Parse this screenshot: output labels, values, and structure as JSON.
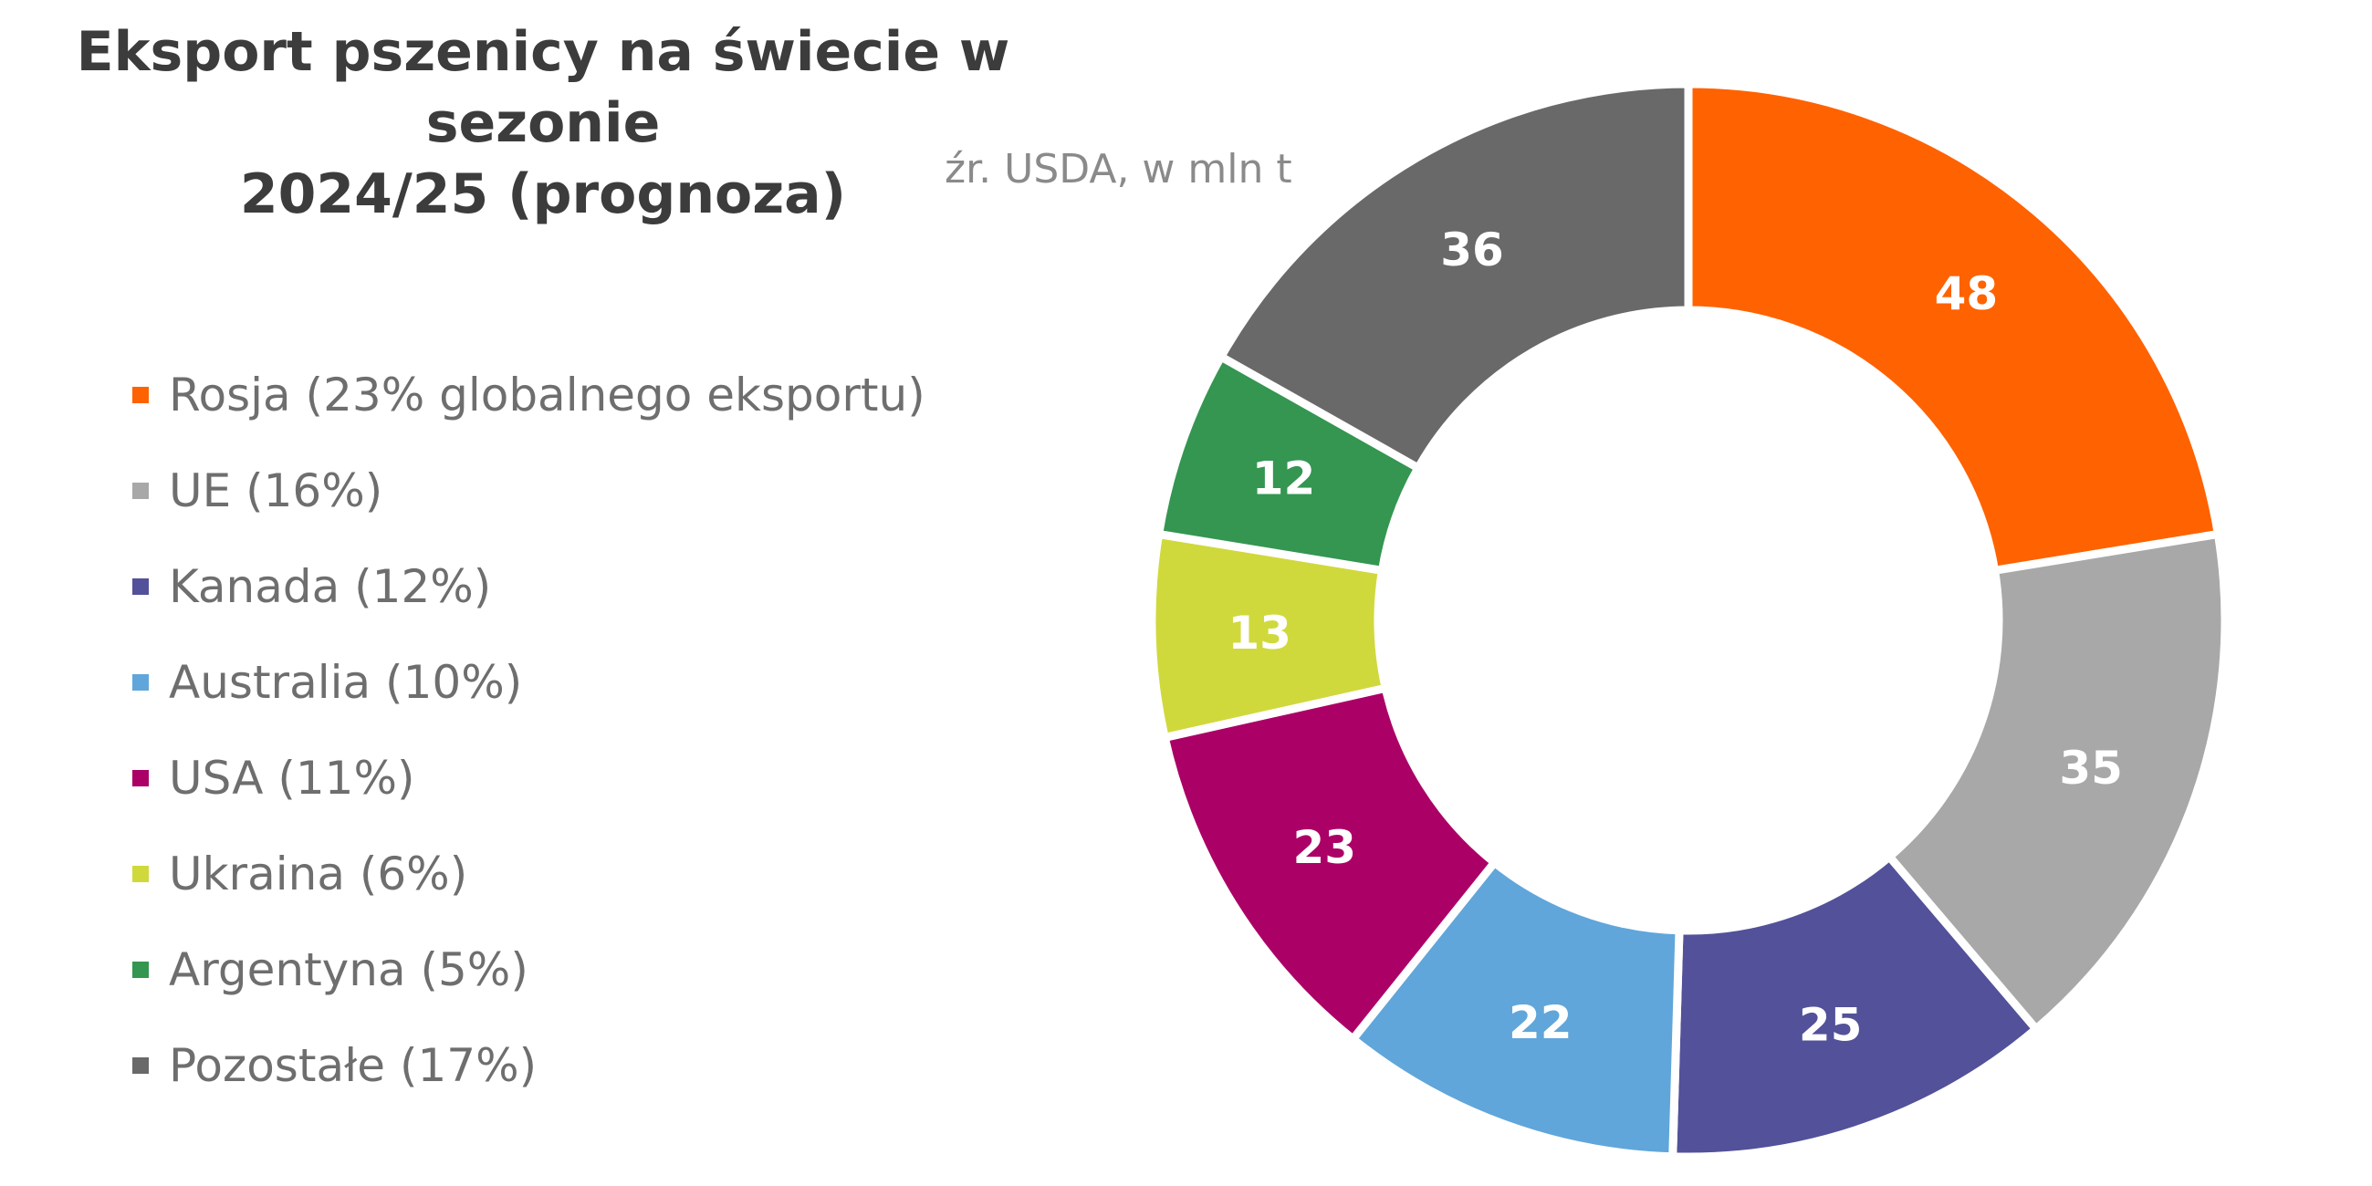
{
  "chart_data": {
    "type": "pie",
    "title": [
      "Eksport pszenicy na świecie w sezonie",
      "2024/25 (prognoza)"
    ],
    "subtitle": "źr. USDA, w mln t",
    "legend_position": "left",
    "slices": [
      {
        "label": "Rosja (23% globalnego eksportu)",
        "value": 48,
        "value_label": "48",
        "color": "#FF6200"
      },
      {
        "label": "UE (16%)",
        "value": 35,
        "value_label": "35",
        "color": "#A8A8A8"
      },
      {
        "label": "Kanada (12%)",
        "value": 25,
        "value_label": "25",
        "color": "#525199"
      },
      {
        "label": "Australia (10%)",
        "value": 22,
        "value_label": "22",
        "color": "#60A6DA"
      },
      {
        "label": "USA (11%)",
        "value": 23,
        "value_label": "23",
        "color": "#AB0066"
      },
      {
        "label": "Ukraina (6%)",
        "value": 13,
        "value_label": "13",
        "color": "#D0D93C"
      },
      {
        "label": "Argentyna (5%)",
        "value": 12,
        "value_label": "12",
        "color": "#349651"
      },
      {
        "label": "Pozostałe (17%)",
        "value": 36,
        "value_label": "36",
        "color": "#696969"
      }
    ]
  }
}
